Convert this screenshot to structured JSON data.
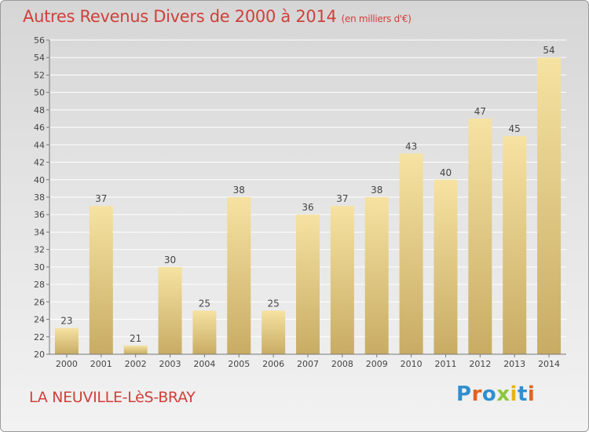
{
  "title": "Autres Revenus Divers de 2000 à 2014",
  "subtitle": "(en milliers d'€)",
  "place": "LA NEUVILLE-LèS-BRAY",
  "logo": {
    "text": "Proxiti",
    "letter_colors": [
      "#2f8fd0",
      "#e0641e",
      "#2f8fd0",
      "#8cc63e",
      "#e6b21e",
      "#2f8fd0",
      "#e0641e"
    ]
  },
  "colors": {
    "accent": "#d0403a",
    "bar_light": "#f6e2a2",
    "bar_dark": "#c8ac64"
  },
  "chart_data": {
    "type": "bar",
    "categories": [
      "2000",
      "2001",
      "2002",
      "2003",
      "2004",
      "2005",
      "2006",
      "2007",
      "2008",
      "2009",
      "2010",
      "2011",
      "2012",
      "2013",
      "2014"
    ],
    "values": [
      23,
      37,
      21,
      30,
      25,
      38,
      25,
      36,
      37,
      38,
      43,
      40,
      47,
      45,
      54
    ],
    "title": "Autres Revenus Divers de 2000 à 2014",
    "ylim": [
      20,
      56
    ],
    "yticks": [
      20,
      22,
      24,
      26,
      28,
      30,
      32,
      34,
      36,
      38,
      40,
      42,
      44,
      46,
      48,
      50,
      52,
      54,
      56
    ],
    "grid": true
  }
}
